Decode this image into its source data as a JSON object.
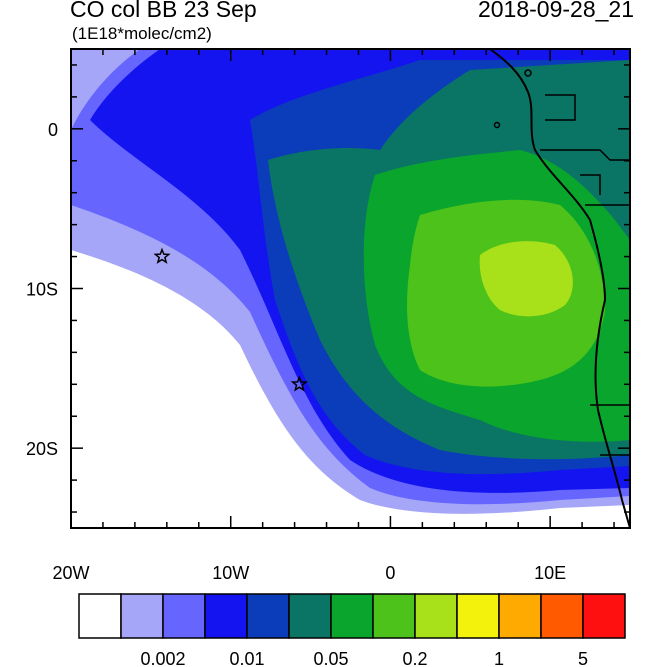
{
  "header": {
    "title": "CO col BB 23 Sep",
    "units": "(1E18*molec/cm2)",
    "timestamp": "2018-09-28_21"
  },
  "map": {
    "lon_range": [
      -20,
      15
    ],
    "lat_range": [
      -25,
      5
    ],
    "x_ticks": [
      "20W",
      "10W",
      "0",
      "10E"
    ],
    "y_ticks": [
      "0",
      "10S",
      "20S"
    ],
    "markers": [
      {
        "name": "star-marker-1",
        "lon": -14.3,
        "lat": -8.0
      },
      {
        "name": "star-marker-2",
        "lon": -5.7,
        "lat": -16.0
      }
    ],
    "field_colors": [
      "#ffffff",
      "#a6a6f8",
      "#6666ff",
      "#1414f0",
      "#0b3dba",
      "#0a7565",
      "#09a52d",
      "#4cc21a",
      "#a8e01a",
      "#f2f20c",
      "#ffaa00",
      "#ff5a00",
      "#ff1010"
    ]
  },
  "colorbar": {
    "colors": [
      "#ffffff",
      "#a6a6f8",
      "#6666ff",
      "#1414f0",
      "#0b3dba",
      "#0a7565",
      "#09a52d",
      "#4cc21a",
      "#a8e01a",
      "#f2f20c",
      "#ffaa00",
      "#ff5a00",
      "#ff1010"
    ],
    "labels": [
      "0.002",
      "0.01",
      "0.05",
      "0.2",
      "1",
      "5"
    ]
  }
}
